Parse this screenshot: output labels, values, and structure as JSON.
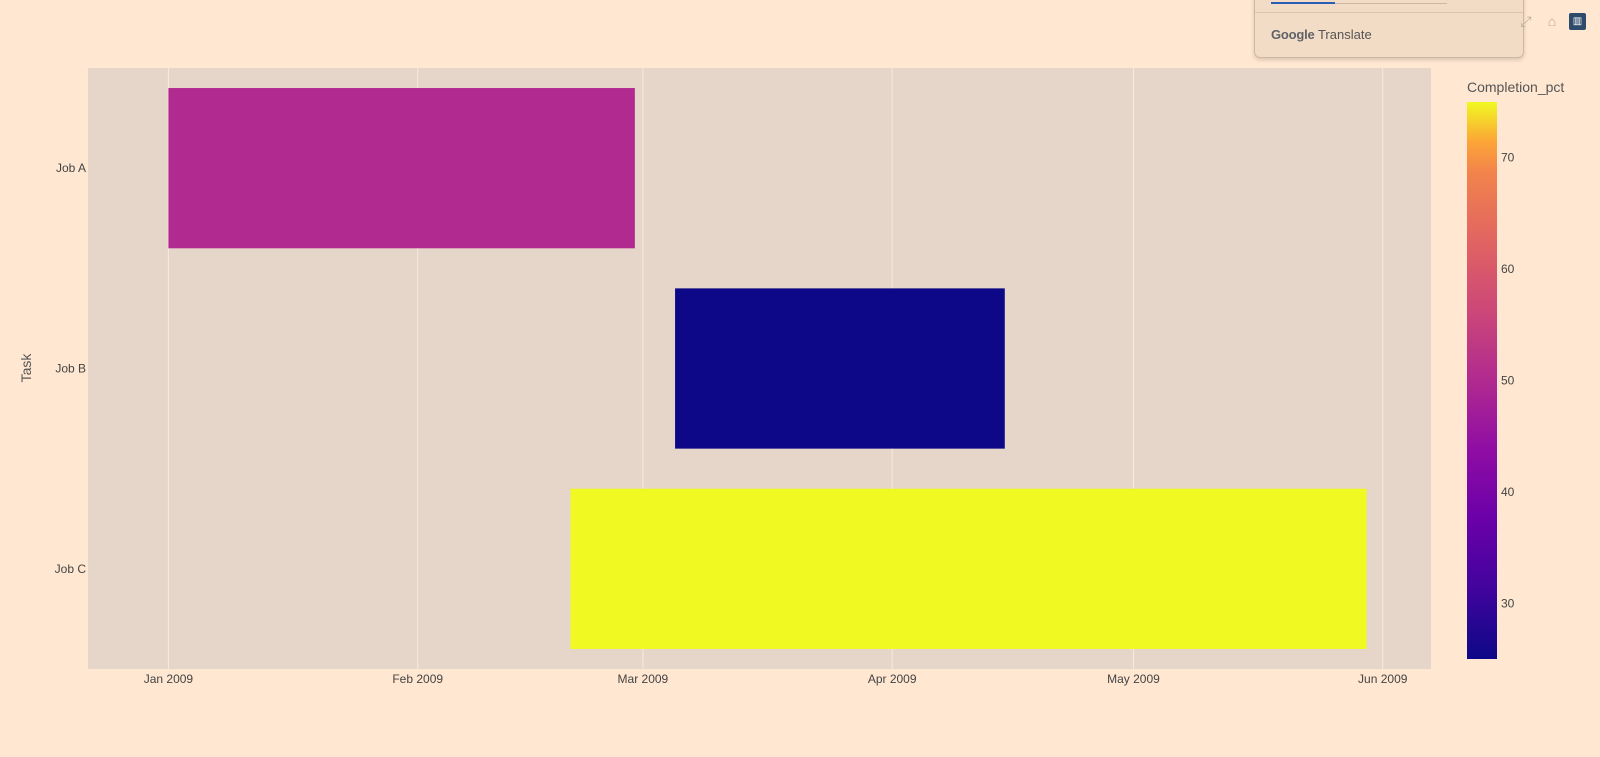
{
  "chart_data": {
    "type": "gantt",
    "ylabel": "Task",
    "categories": [
      "Job A",
      "Job B",
      "Job C"
    ],
    "x_axis": {
      "type": "date",
      "range": [
        "2008-12-22",
        "2009-06-07"
      ],
      "ticks": [
        {
          "date": "2009-01-01",
          "label": "Jan 2009"
        },
        {
          "date": "2009-02-01",
          "label": "Feb 2009"
        },
        {
          "date": "2009-03-01",
          "label": "Mar 2009"
        },
        {
          "date": "2009-04-01",
          "label": "Apr 2009"
        },
        {
          "date": "2009-05-01",
          "label": "May 2009"
        },
        {
          "date": "2009-06-01",
          "label": "Jun 2009"
        }
      ]
    },
    "tasks": [
      {
        "task": "Job A",
        "start": "2009-01-01",
        "finish": "2009-02-28",
        "completion_pct": 50
      },
      {
        "task": "Job B",
        "start": "2009-03-05",
        "finish": "2009-04-15",
        "completion_pct": 25
      },
      {
        "task": "Job C",
        "start": "2009-02-20",
        "finish": "2009-05-30",
        "completion_pct": 75
      }
    ],
    "colorbar": {
      "title": "Completion_pct",
      "range": [
        25,
        75
      ],
      "ticks": [
        30,
        40,
        50,
        60,
        70
      ],
      "colorscale": "Plasma"
    },
    "colors": {
      "paper_bg": "#ffe7d1",
      "plot_bg": "#e5d6c9",
      "grid": "#f5ebe1"
    }
  },
  "modebar": {
    "icons": [
      "autoscale-icon",
      "reset-axes-icon",
      "plotly-logo-icon"
    ]
  },
  "translate_popup": {
    "brand_google": "Google",
    "brand_translate": "Translate"
  }
}
